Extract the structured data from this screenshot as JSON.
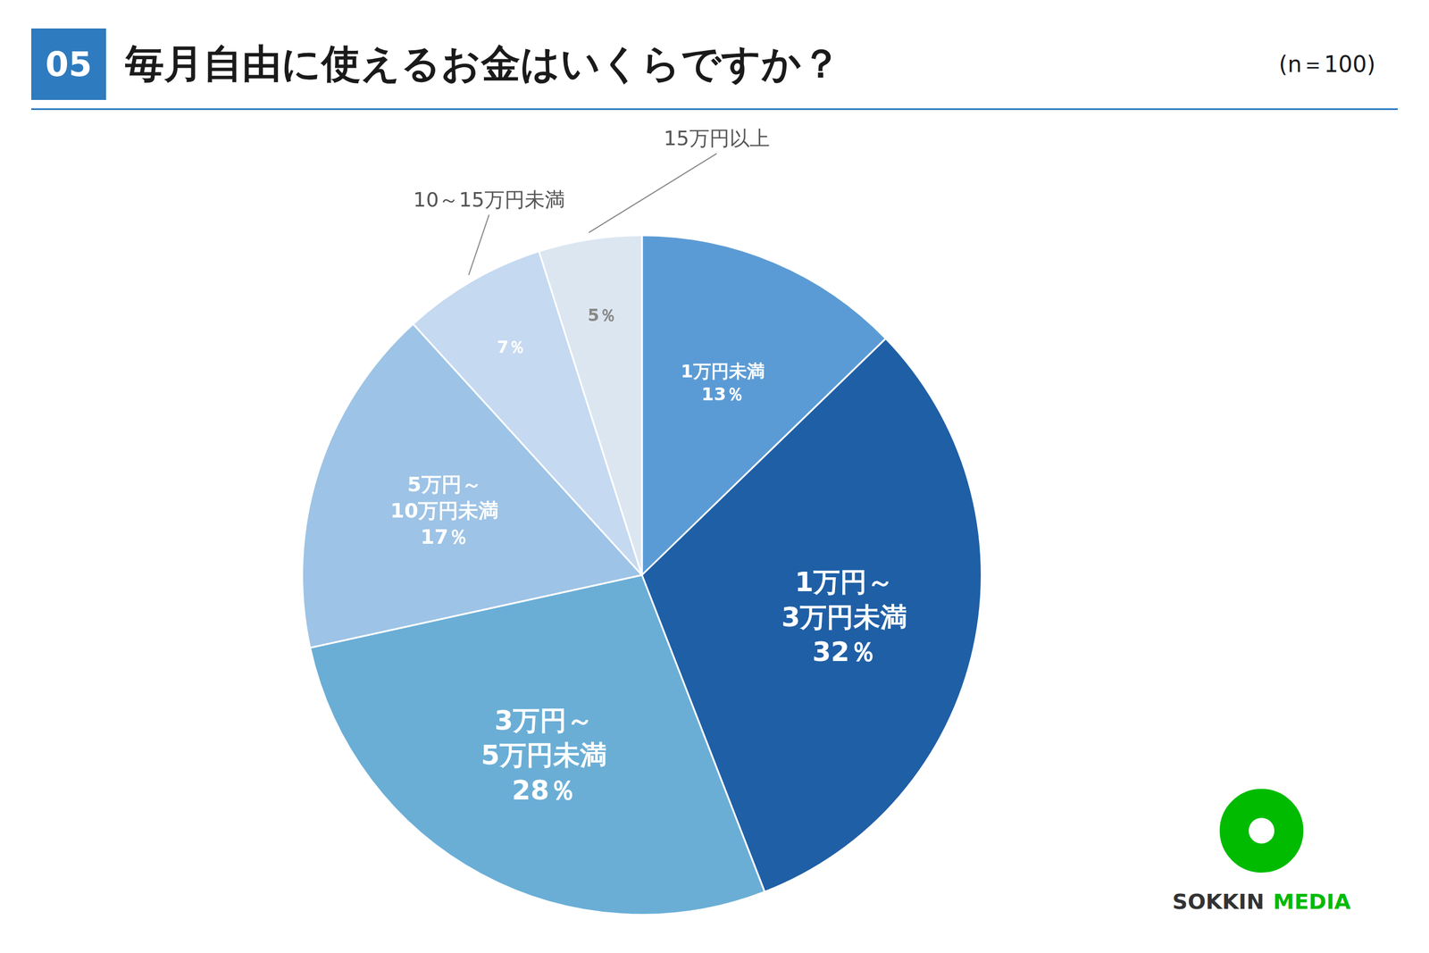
{
  "chart_data": {
    "type": "pie",
    "title": "毎月自由に使えるお金はいくらですか？",
    "subtitle": "(n＝100)",
    "annotations": [
      "05",
      "SOKKIN",
      "MEDIA"
    ],
    "categories": [
      "1万円未満",
      "1万円～\n3万円未満",
      "3万円～\n5万円未満",
      "5万円～\n10万円未満",
      "10～15万円未満",
      "15万円以上"
    ],
    "values": [
      13,
      32,
      28,
      17,
      7,
      5
    ],
    "value_labels": [
      "13％",
      "32％",
      "28％",
      "17％",
      "7％",
      "5％"
    ],
    "colors": [
      "#5b9bd5",
      "#1f5fa6",
      "#6aaed6",
      "#9dc3e6",
      "#c5d9f1",
      "#dce6f1"
    ],
    "data_labels": true,
    "legend": false
  }
}
